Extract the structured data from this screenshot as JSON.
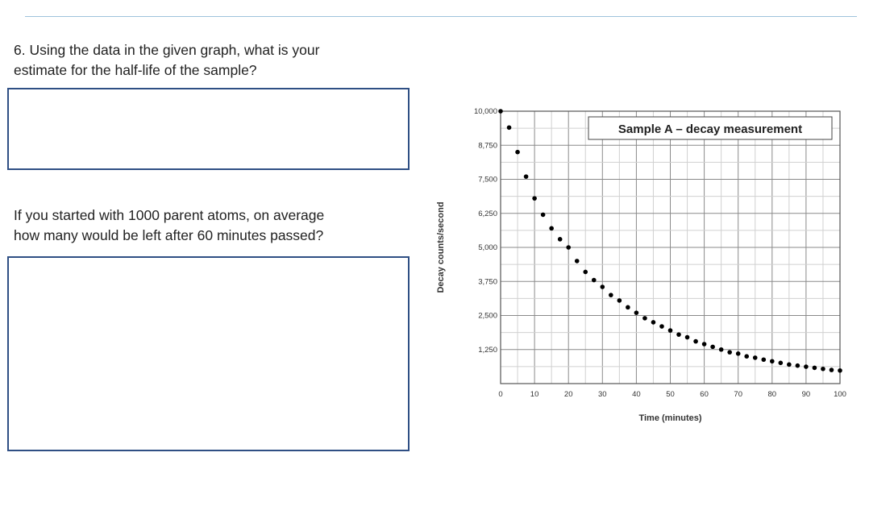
{
  "questions": {
    "q1_line1": "6. Using the data in the given graph, what is your",
    "q1_line2": "estimate for the half-life of the sample?",
    "q2_line1": "If you started with 1000 parent atoms, on average",
    "q2_line2": "how many would be left after 60 minutes passed?"
  },
  "chart_data": {
    "type": "scatter",
    "title": "Sample A – decay measurement",
    "xlabel": "Time (minutes)",
    "ylabel": "Decay counts/second",
    "xlim": [
      0,
      100
    ],
    "ylim": [
      0,
      10000
    ],
    "grid": true,
    "x_ticks": [
      "0",
      "10",
      "20",
      "30",
      "40",
      "50",
      "60",
      "70",
      "80",
      "90",
      "100"
    ],
    "y_ticks": [
      "10,000",
      "8,750",
      "7,500",
      "6,250",
      "5,000",
      "3,750",
      "2,500",
      "1,250"
    ],
    "points": [
      {
        "x": 0,
        "y": 10000
      },
      {
        "x": 2.5,
        "y": 9400
      },
      {
        "x": 5,
        "y": 8500
      },
      {
        "x": 7.5,
        "y": 7600
      },
      {
        "x": 10,
        "y": 6800
      },
      {
        "x": 12.5,
        "y": 6200
      },
      {
        "x": 15,
        "y": 5700
      },
      {
        "x": 17.5,
        "y": 5300
      },
      {
        "x": 20,
        "y": 5000
      },
      {
        "x": 22.5,
        "y": 4500
      },
      {
        "x": 25,
        "y": 4100
      },
      {
        "x": 27.5,
        "y": 3800
      },
      {
        "x": 30,
        "y": 3550
      },
      {
        "x": 32.5,
        "y": 3250
      },
      {
        "x": 35,
        "y": 3050
      },
      {
        "x": 37.5,
        "y": 2800
      },
      {
        "x": 40,
        "y": 2600
      },
      {
        "x": 42.5,
        "y": 2400
      },
      {
        "x": 45,
        "y": 2250
      },
      {
        "x": 47.5,
        "y": 2100
      },
      {
        "x": 50,
        "y": 1950
      },
      {
        "x": 52.5,
        "y": 1800
      },
      {
        "x": 55,
        "y": 1700
      },
      {
        "x": 57.5,
        "y": 1550
      },
      {
        "x": 60,
        "y": 1450
      },
      {
        "x": 62.5,
        "y": 1350
      },
      {
        "x": 65,
        "y": 1250
      },
      {
        "x": 67.5,
        "y": 1150
      },
      {
        "x": 70,
        "y": 1100
      },
      {
        "x": 72.5,
        "y": 1000
      },
      {
        "x": 75,
        "y": 950
      },
      {
        "x": 77.5,
        "y": 880
      },
      {
        "x": 80,
        "y": 820
      },
      {
        "x": 82.5,
        "y": 760
      },
      {
        "x": 85,
        "y": 700
      },
      {
        "x": 87.5,
        "y": 660
      },
      {
        "x": 90,
        "y": 620
      },
      {
        "x": 92.5,
        "y": 580
      },
      {
        "x": 95,
        "y": 540
      },
      {
        "x": 97.5,
        "y": 500
      },
      {
        "x": 100,
        "y": 480
      }
    ]
  }
}
